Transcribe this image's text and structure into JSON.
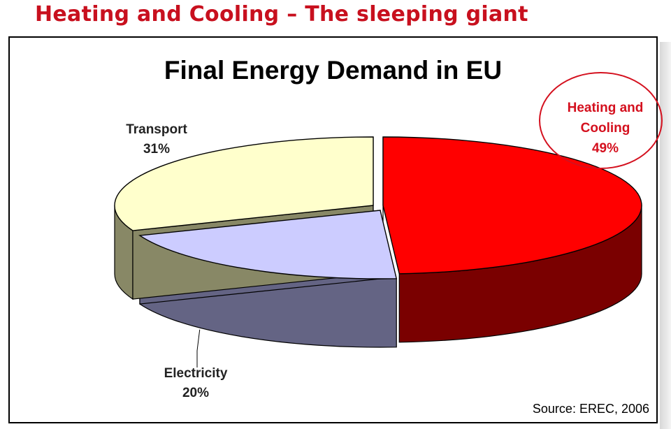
{
  "slide": {
    "title": "Heating and Cooling – The sleeping giant"
  },
  "chart_data": {
    "type": "pie",
    "title": "Final Energy Demand in EU",
    "source": "Source: EREC, 2006",
    "slices": [
      {
        "label": "Heating and Cooling",
        "value": 49,
        "value_text": "49%",
        "color": "#ff0000",
        "side_color": "#7a0000"
      },
      {
        "label": "Electricity",
        "value": 20,
        "value_text": "20%",
        "color": "#ccccff",
        "side_color": "#646484"
      },
      {
        "label": "Transport",
        "value": 31,
        "value_text": "31%",
        "color": "#ffffcc",
        "side_color": "#888866"
      }
    ],
    "labels": {
      "heating": {
        "line1": "Heating and",
        "line2": "Cooling",
        "line3": "49%"
      },
      "transport": {
        "line1": "Transport",
        "line2": "31%"
      },
      "electricity": {
        "line1": "Electricity",
        "line2": "20%"
      }
    },
    "highlight": "Heating and Cooling"
  }
}
